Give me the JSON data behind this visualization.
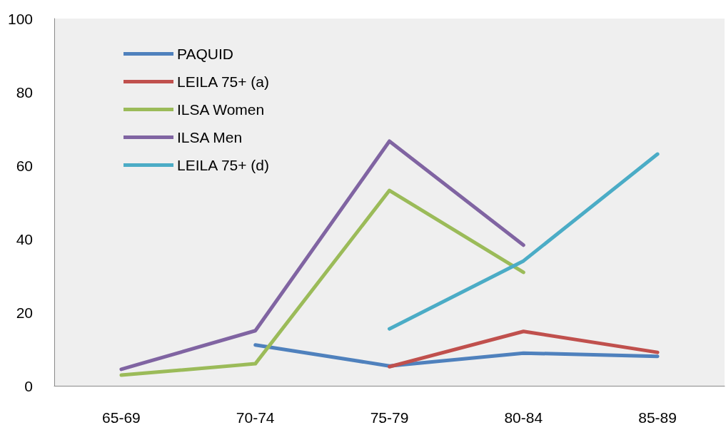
{
  "chart_data": {
    "type": "line",
    "categories": [
      "65-69",
      "70-74",
      "75-79",
      "80-84",
      "85-89"
    ],
    "series": [
      {
        "name": "PAQUID",
        "color": "#4f81bd",
        "values": [
          null,
          11.1,
          5.4,
          8.9,
          8.0
        ]
      },
      {
        "name": "LEILA 75+ (a)",
        "color": "#c0504d",
        "values": [
          null,
          null,
          5.2,
          14.8,
          9.1
        ]
      },
      {
        "name": "ILSA Women",
        "color": "#9bbb59",
        "values": [
          2.9,
          6.0,
          53.2,
          30.9,
          null
        ]
      },
      {
        "name": "ILSA Men",
        "color": "#8064a2",
        "values": [
          4.5,
          15.0,
          66.6,
          38.3,
          null
        ]
      },
      {
        "name": "LEILA 75+ (d)",
        "color": "#4bacc6",
        "values": [
          null,
          null,
          15.5,
          34.0,
          63.1
        ]
      }
    ],
    "ylim": [
      0,
      100
    ],
    "yticks": [
      0,
      20,
      40,
      60,
      80,
      100
    ],
    "grid": false,
    "legend": "top left",
    "marker": "none",
    "line_style": "solid"
  }
}
